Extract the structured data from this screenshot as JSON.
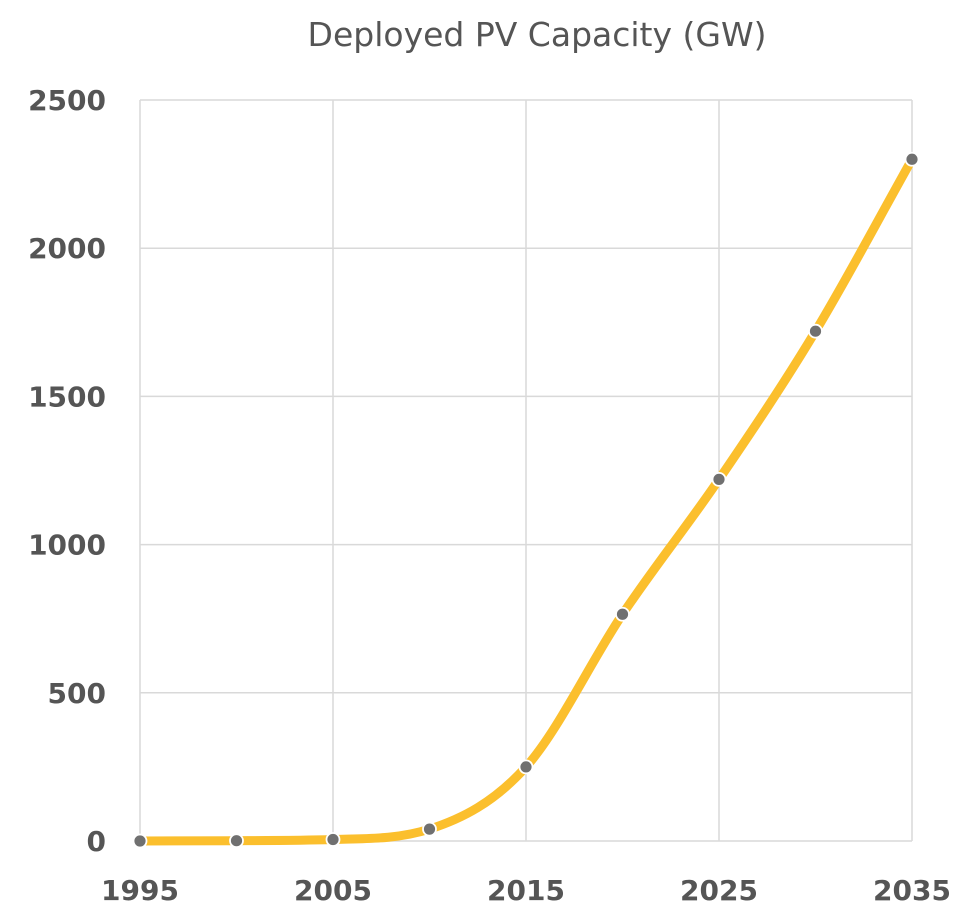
{
  "chart_data": {
    "type": "line",
    "title": "Deployed PV Capacity (GW)",
    "xlabel": "",
    "ylabel": "",
    "x": [
      1995,
      2000,
      2005,
      2010,
      2015,
      2020,
      2025,
      2030,
      2035
    ],
    "series": [
      {
        "name": "Deployed PV Capacity",
        "values": [
          0,
          1,
          5,
          40,
          250,
          765,
          1220,
          1720,
          2300
        ],
        "color": "#FBBF2D",
        "marker_color": "#707070",
        "smooth": true
      }
    ],
    "xlim": [
      1995,
      2035
    ],
    "ylim": [
      0,
      2500
    ],
    "xticks": [
      1995,
      2005,
      2015,
      2025,
      2035
    ],
    "xtick_labels": [
      "1995",
      "2005",
      "2015",
      "2025",
      "2035"
    ],
    "xgrid": [
      1995,
      2005,
      2015,
      2025,
      2035
    ],
    "yticks": [
      0,
      500,
      1000,
      1500,
      2000,
      2500
    ],
    "ytick_labels": [
      "0",
      "500",
      "1000",
      "1500",
      "2000",
      "2500"
    ],
    "grid": true,
    "legend": "none"
  }
}
